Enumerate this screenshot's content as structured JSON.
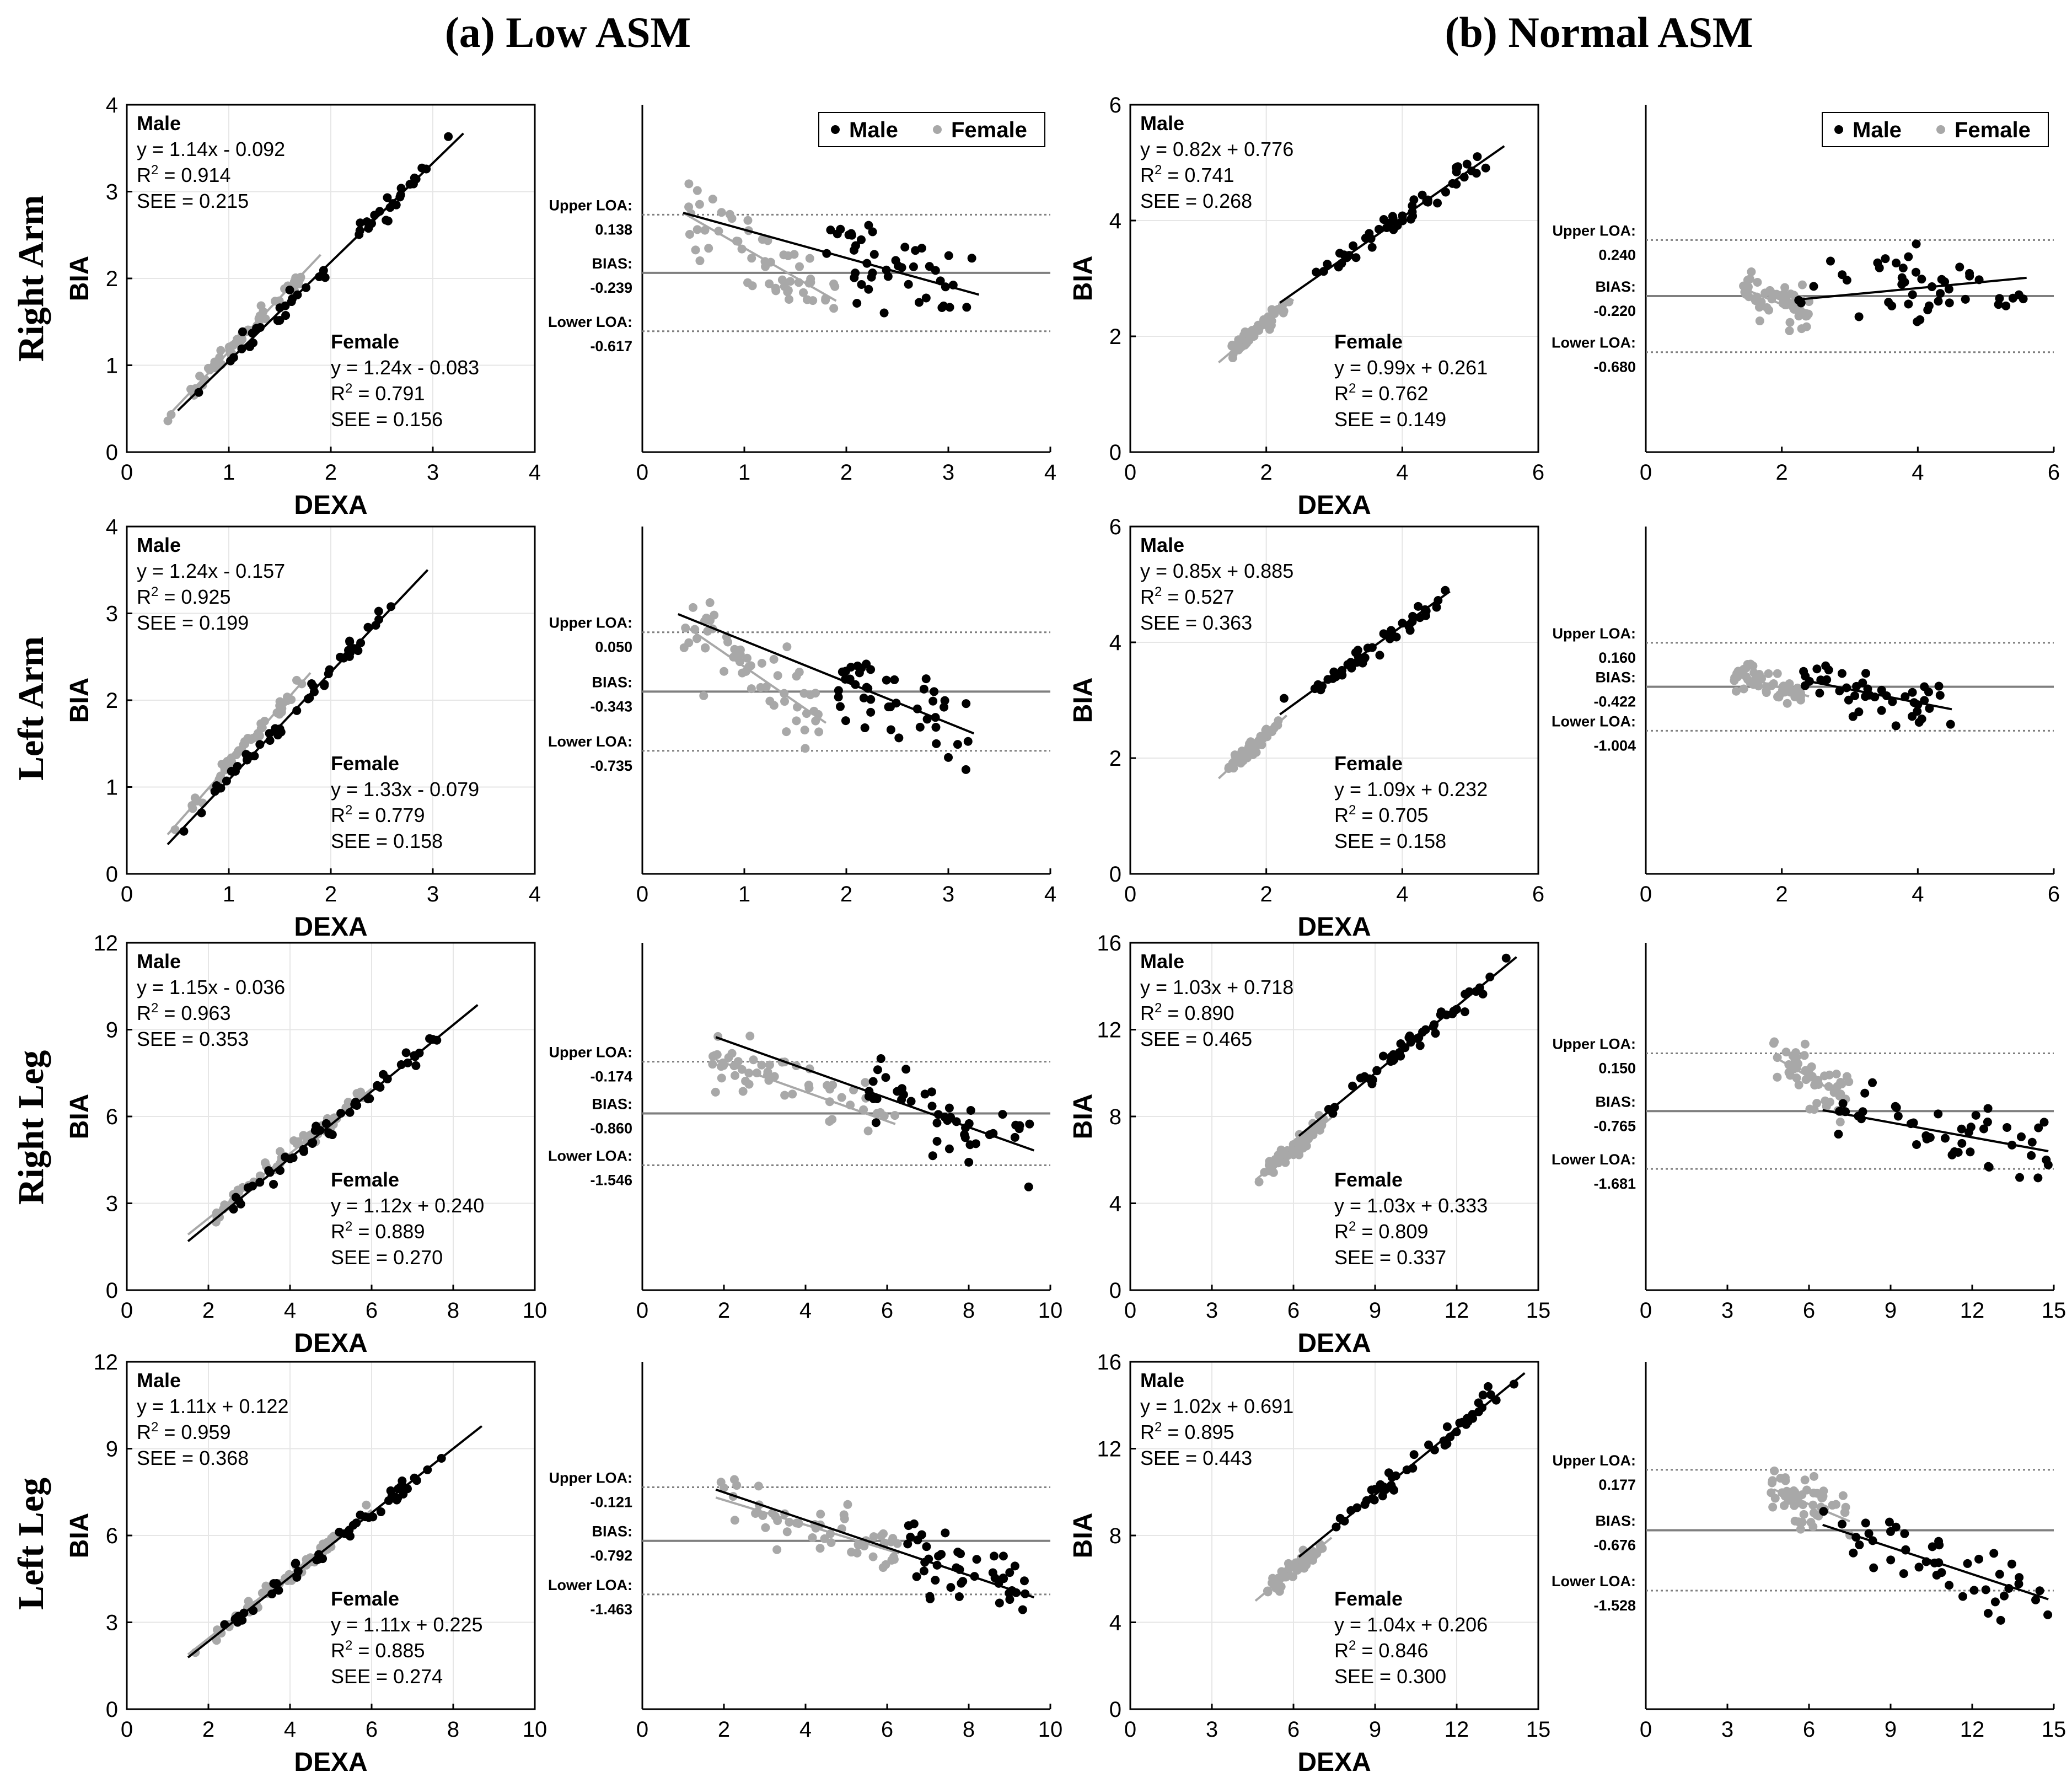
{
  "figure": {
    "group_titles": [
      "(a) Low ASM",
      "(b) Normal ASM"
    ],
    "row_labels": [
      "Right Arm",
      "Left Arm",
      "Right Leg",
      "Left Leg"
    ],
    "axis_label_x": "DEXA",
    "axis_label_y": "BIA",
    "legend": {
      "male": "Male",
      "female": "Female"
    },
    "colors": {
      "male": "#000000",
      "female": "#a8a8a8",
      "bias_line": "#7f7f7f",
      "loa_line": "#7f7f7f",
      "grid": "#e6e6e6"
    }
  },
  "chart_data": [
    {
      "id": "reg-low-rightarm",
      "type": "scatter",
      "group": "(a) Low ASM",
      "row": "Right Arm",
      "kind": "regression",
      "xlim": [
        0,
        4
      ],
      "ylim": [
        0,
        4
      ],
      "xticks": [
        0,
        1,
        2,
        3,
        4
      ],
      "yticks": [
        0,
        1,
        2,
        3,
        4
      ],
      "xlabel": "DEXA",
      "ylabel": "BIA",
      "male": {
        "name": "Male",
        "eq": "y = 1.14x - 0.092",
        "r2": "0.914",
        "see": "SEE = 0.215",
        "slope": 1.14,
        "intercept": -0.092,
        "xrange": [
          0.5,
          3.3
        ]
      },
      "female": {
        "name": "Female",
        "eq": "y = 1.24x - 0.083",
        "r2": "0.791",
        "see": "SEE = 0.156",
        "slope": 1.24,
        "intercept": -0.083,
        "xrange": [
          0.4,
          1.9
        ]
      }
    },
    {
      "id": "ba-low-rightarm",
      "type": "scatter",
      "group": "(a) Low ASM",
      "row": "Right Arm",
      "kind": "bland-altman",
      "xlim": [
        0,
        4
      ],
      "xticks": [
        0,
        1,
        2,
        3,
        4
      ],
      "ylim": [
        -1.4,
        0.85
      ],
      "upper_loa": {
        "label": "Upper LOA:",
        "value": 0.138,
        "text": "0.138"
      },
      "bias": {
        "label": "BIAS:",
        "value": -0.239,
        "text": "-0.239"
      },
      "lower_loa": {
        "label": "Lower LOA:",
        "value": -0.617,
        "text": "-0.617"
      },
      "male_range": [
        1.7,
        3.3
      ],
      "female_range": [
        0.4,
        1.9
      ],
      "male_spread": 0.55,
      "female_spread": 0.4,
      "male_trend": [
        [
          0.4,
          0.15
        ],
        [
          3.3,
          -0.38
        ]
      ],
      "female_trend": [
        [
          0.4,
          0.15
        ],
        [
          1.9,
          -0.42
        ]
      ],
      "legend": true
    },
    {
      "id": "reg-normal-rightarm",
      "type": "scatter",
      "group": "(b) Normal ASM",
      "row": "Right Arm",
      "kind": "regression",
      "xlim": [
        0,
        6
      ],
      "ylim": [
        0,
        6
      ],
      "xticks": [
        0,
        2,
        4,
        6
      ],
      "yticks": [
        0,
        2,
        4,
        6
      ],
      "xlabel": "DEXA",
      "ylabel": "BIA",
      "male": {
        "name": "Male",
        "eq": "y = 0.82x + 0.776",
        "r2": "0.741",
        "see": "SEE = 0.268",
        "slope": 0.82,
        "intercept": 0.776,
        "xrange": [
          2.2,
          5.5
        ]
      },
      "female": {
        "name": "Female",
        "eq": "y = 0.99x + 0.261",
        "r2": "0.762",
        "see": "SEE = 0.149",
        "slope": 0.99,
        "intercept": 0.261,
        "xrange": [
          1.3,
          2.4
        ]
      }
    },
    {
      "id": "ba-normal-rightarm",
      "type": "scatter",
      "group": "(b) Normal ASM",
      "row": "Right Arm",
      "kind": "bland-altman",
      "xlim": [
        0,
        6
      ],
      "xticks": [
        0,
        2,
        4,
        6
      ],
      "ylim": [
        -1.5,
        1.35
      ],
      "upper_loa": {
        "label": "Upper LOA:",
        "value": 0.24,
        "text": "0.240"
      },
      "bias": {
        "label": "BIAS:",
        "value": -0.22,
        "text": "-0.220"
      },
      "lower_loa": {
        "label": "Lower LOA:",
        "value": -0.68,
        "text": "-0.680"
      },
      "male_range": [
        2.2,
        5.6
      ],
      "female_range": [
        1.4,
        2.4
      ],
      "male_spread": 0.5,
      "female_spread": 0.3,
      "male_trend": [
        [
          2.2,
          -0.25
        ],
        [
          5.6,
          -0.07
        ]
      ],
      "female_trend": [
        [
          1.4,
          -0.15
        ],
        [
          2.4,
          -0.38
        ]
      ],
      "legend": true
    },
    {
      "id": "reg-low-leftarm",
      "type": "scatter",
      "group": "(a) Low ASM",
      "row": "Left Arm",
      "kind": "regression",
      "xlim": [
        0,
        4
      ],
      "ylim": [
        0,
        4
      ],
      "xticks": [
        0,
        1,
        2,
        3,
        4
      ],
      "yticks": [
        0,
        1,
        2,
        3,
        4
      ],
      "xlabel": "DEXA",
      "ylabel": "BIA",
      "male": {
        "name": "Male",
        "eq": "y = 1.24x - 0.157",
        "r2": "0.925",
        "see": "SEE = 0.199",
        "slope": 1.24,
        "intercept": -0.157,
        "xrange": [
          0.4,
          2.95
        ]
      },
      "female": {
        "name": "Female",
        "eq": "y = 1.33x - 0.079",
        "r2": "0.779",
        "see": "SEE = 0.158",
        "slope": 1.33,
        "intercept": -0.079,
        "xrange": [
          0.4,
          1.8
        ]
      }
    },
    {
      "id": "ba-low-leftarm",
      "type": "scatter",
      "group": "(a) Low ASM",
      "row": "Left Arm",
      "kind": "bland-altman",
      "xlim": [
        0,
        4
      ],
      "xticks": [
        0,
        1,
        2,
        3,
        4
      ],
      "ylim": [
        -1.55,
        0.75
      ],
      "upper_loa": {
        "label": "Upper LOA:",
        "value": 0.05,
        "text": "0.050"
      },
      "bias": {
        "label": "BIAS:",
        "value": -0.343,
        "text": "-0.343"
      },
      "lower_loa": {
        "label": "Lower LOA:",
        "value": -0.735,
        "text": "-0.735"
      },
      "male_range": [
        1.8,
        3.2
      ],
      "female_range": [
        0.4,
        1.8
      ],
      "male_spread": 0.5,
      "female_spread": 0.45,
      "male_trend": [
        [
          0.35,
          0.17
        ],
        [
          3.25,
          -0.62
        ]
      ],
      "female_trend": [
        [
          0.4,
          0.1
        ],
        [
          1.8,
          -0.55
        ]
      ],
      "legend": false
    },
    {
      "id": "reg-normal-leftarm",
      "type": "scatter",
      "group": "(b) Normal ASM",
      "row": "Left Arm",
      "kind": "regression",
      "xlim": [
        0,
        6
      ],
      "ylim": [
        0,
        6
      ],
      "xticks": [
        0,
        2,
        4,
        6
      ],
      "yticks": [
        0,
        2,
        4,
        6
      ],
      "xlabel": "DEXA",
      "ylabel": "BIA",
      "male": {
        "name": "Male",
        "eq": "y = 0.85x + 0.885",
        "r2": "0.527",
        "see": "SEE = 0.363",
        "slope": 0.85,
        "intercept": 0.885,
        "xrange": [
          2.2,
          4.7
        ]
      },
      "female": {
        "name": "Female",
        "eq": "y = 1.09x + 0.232",
        "r2": "0.705",
        "see": "SEE = 0.158",
        "slope": 1.09,
        "intercept": 0.232,
        "xrange": [
          1.3,
          2.3
        ]
      }
    },
    {
      "id": "ba-normal-leftarm",
      "type": "scatter",
      "group": "(b) Normal ASM",
      "row": "Left Arm",
      "kind": "bland-altman",
      "xlim": [
        0,
        6
      ],
      "xticks": [
        0,
        2,
        4,
        6
      ],
      "ylim": [
        -2.9,
        1.7
      ],
      "upper_loa": {
        "label": "Upper LOA:",
        "value": 0.16,
        "text": "0.160"
      },
      "bias": {
        "label": "BIAS:",
        "value": -0.422,
        "text": "-0.422"
      },
      "lower_loa": {
        "label": "Lower LOA:",
        "value": -1.004,
        "text": "-1.004"
      },
      "male_range": [
        2.3,
        4.5
      ],
      "female_range": [
        1.3,
        2.3
      ],
      "male_spread": 0.55,
      "female_spread": 0.3,
      "male_trend": [
        [
          2.4,
          -0.35
        ],
        [
          4.5,
          -0.72
        ]
      ],
      "female_trend": [
        [
          1.3,
          -0.25
        ],
        [
          2.4,
          -0.55
        ]
      ],
      "legend": false
    },
    {
      "id": "reg-low-rightleg",
      "type": "scatter",
      "group": "(a) Low ASM",
      "row": "Right Leg",
      "kind": "regression",
      "xlim": [
        0,
        10
      ],
      "ylim": [
        0,
        12
      ],
      "xticks": [
        0,
        2,
        4,
        6,
        8,
        10
      ],
      "yticks": [
        0,
        3,
        6,
        9,
        12
      ],
      "xlabel": "DEXA",
      "ylabel": "BIA",
      "male": {
        "name": "Male",
        "eq": "y = 1.15x - 0.036",
        "r2": "0.963",
        "see": "SEE = 0.353",
        "slope": 1.15,
        "intercept": -0.036,
        "xrange": [
          1.5,
          8.6
        ]
      },
      "female": {
        "name": "Female",
        "eq": "y = 1.12x + 0.240",
        "r2": "0.889",
        "see": "SEE = 0.270",
        "slope": 1.12,
        "intercept": 0.24,
        "xrange": [
          1.5,
          6.0
        ]
      }
    },
    {
      "id": "ba-low-rightleg",
      "type": "scatter",
      "group": "(a) Low ASM",
      "row": "Right Leg",
      "kind": "bland-altman",
      "xlim": [
        0,
        10
      ],
      "xticks": [
        0,
        2,
        4,
        6,
        8,
        10
      ],
      "ylim": [
        -3.2,
        1.4
      ],
      "upper_loa": {
        "label": "Upper LOA:",
        "value": -0.174,
        "text": "-0.174"
      },
      "bias": {
        "label": "BIAS:",
        "value": -0.86,
        "text": "-0.860"
      },
      "lower_loa": {
        "label": "Lower LOA:",
        "value": -1.546,
        "text": "-1.546"
      },
      "male_range": [
        5.5,
        9.6
      ],
      "female_range": [
        1.7,
        6.2
      ],
      "male_spread": 0.8,
      "female_spread": 0.6,
      "male_trend": [
        [
          1.8,
          0.15
        ],
        [
          9.6,
          -1.35
        ]
      ],
      "female_trend": [
        [
          1.8,
          -0.15
        ],
        [
          6.2,
          -1.0
        ]
      ],
      "legend": false
    },
    {
      "id": "reg-normal-rightleg",
      "type": "scatter",
      "group": "(b) Normal ASM",
      "row": "Right Leg",
      "kind": "regression",
      "xlim": [
        0,
        15
      ],
      "ylim": [
        0,
        16
      ],
      "xticks": [
        0,
        3,
        6,
        9,
        12,
        15
      ],
      "yticks": [
        0,
        4,
        8,
        12,
        16
      ],
      "xlabel": "DEXA",
      "ylabel": "BIA",
      "male": {
        "name": "Male",
        "eq": "y = 1.03x + 0.718",
        "r2": "0.890",
        "see": "SEE = 0.465",
        "slope": 1.03,
        "intercept": 0.718,
        "xrange": [
          6.2,
          14.2
        ]
      },
      "female": {
        "name": "Female",
        "eq": "y = 1.03x + 0.333",
        "r2": "0.809",
        "see": "SEE = 0.337",
        "slope": 1.03,
        "intercept": 0.333,
        "xrange": [
          4.6,
          7.4
        ]
      }
    },
    {
      "id": "ba-normal-rightleg",
      "type": "scatter",
      "group": "(b) Normal ASM",
      "row": "Right Leg",
      "kind": "bland-altman",
      "xlim": [
        0,
        15
      ],
      "xticks": [
        0,
        3,
        6,
        9,
        12,
        15
      ],
      "ylim": [
        -3.6,
        1.9
      ],
      "upper_loa": {
        "label": "Upper LOA:",
        "value": 0.15,
        "text": "0.150"
      },
      "bias": {
        "label": "BIAS:",
        "value": -0.765,
        "text": "-0.765"
      },
      "lower_loa": {
        "label": "Lower LOA:",
        "value": -1.681,
        "text": "-1.681"
      },
      "male_range": [
        6.5,
        14.8
      ],
      "female_range": [
        4.6,
        7.5
      ],
      "male_spread": 0.9,
      "female_spread": 0.7,
      "male_trend": [
        [
          6.5,
          -0.75
        ],
        [
          14.8,
          -1.4
        ]
      ],
      "female_trend": [
        [
          4.7,
          0.1
        ],
        [
          7.5,
          -0.6
        ]
      ],
      "legend": false
    },
    {
      "id": "reg-low-leftleg",
      "type": "scatter",
      "group": "(a) Low ASM",
      "row": "Left Leg",
      "kind": "regression",
      "xlim": [
        0,
        10
      ],
      "ylim": [
        0,
        12
      ],
      "xticks": [
        0,
        2,
        4,
        6,
        8,
        10
      ],
      "yticks": [
        0,
        3,
        6,
        9,
        12
      ],
      "xlabel": "DEXA",
      "ylabel": "BIA",
      "male": {
        "name": "Male",
        "eq": "y = 1.11x + 0.122",
        "r2": "0.959",
        "see": "SEE = 0.368",
        "slope": 1.11,
        "intercept": 0.122,
        "xrange": [
          1.5,
          8.7
        ]
      },
      "female": {
        "name": "Female",
        "eq": "y = 1.11x + 0.225",
        "r2": "0.885",
        "see": "SEE = 0.274",
        "slope": 1.11,
        "intercept": 0.225,
        "xrange": [
          1.5,
          6.0
        ]
      }
    },
    {
      "id": "ba-low-leftleg",
      "type": "scatter",
      "group": "(a) Low ASM",
      "row": "Left Leg",
      "kind": "bland-altman",
      "xlim": [
        0,
        10
      ],
      "xticks": [
        0,
        2,
        4,
        6,
        8,
        10
      ],
      "ylim": [
        -2.9,
        1.45
      ],
      "upper_loa": {
        "label": "Upper LOA:",
        "value": -0.121,
        "text": "-0.121"
      },
      "bias": {
        "label": "BIAS:",
        "value": -0.792,
        "text": "-0.792"
      },
      "lower_loa": {
        "label": "Lower LOA:",
        "value": -1.463,
        "text": "-1.463"
      },
      "male_range": [
        6.5,
        9.6
      ],
      "female_range": [
        1.7,
        6.3
      ],
      "male_spread": 0.75,
      "female_spread": 0.55,
      "male_trend": [
        [
          1.8,
          -0.15
        ],
        [
          9.6,
          -1.5
        ]
      ],
      "female_trend": [
        [
          1.8,
          -0.25
        ],
        [
          6.3,
          -0.95
        ]
      ],
      "legend": false
    },
    {
      "id": "reg-normal-leftleg",
      "type": "scatter",
      "group": "(b) Normal ASM",
      "row": "Left Leg",
      "kind": "regression",
      "xlim": [
        0,
        15
      ],
      "ylim": [
        0,
        16
      ],
      "xticks": [
        0,
        3,
        6,
        9,
        12,
        15
      ],
      "yticks": [
        0,
        4,
        8,
        12,
        16
      ],
      "xlabel": "DEXA",
      "ylabel": "BIA",
      "male": {
        "name": "Male",
        "eq": "y = 1.02x + 0.691",
        "r2": "0.895",
        "see": "SEE = 0.443",
        "slope": 1.02,
        "intercept": 0.691,
        "xrange": [
          6.2,
          14.5
        ]
      },
      "female": {
        "name": "Female",
        "eq": "y = 1.04x + 0.206",
        "r2": "0.846",
        "see": "SEE = 0.300",
        "slope": 1.04,
        "intercept": 0.206,
        "xrange": [
          4.6,
          7.4
        ]
      }
    },
    {
      "id": "ba-normal-leftleg",
      "type": "scatter",
      "group": "(b) Normal ASM",
      "row": "Left Leg",
      "kind": "bland-altman",
      "xlim": [
        0,
        15
      ],
      "xticks": [
        0,
        3,
        6,
        9,
        12,
        15
      ],
      "ylim": [
        -3.2,
        1.7
      ],
      "upper_loa": {
        "label": "Upper LOA:",
        "value": 0.177,
        "text": "0.177"
      },
      "bias": {
        "label": "BIAS:",
        "value": -0.676,
        "text": "-0.676"
      },
      "lower_loa": {
        "label": "Lower LOA:",
        "value": -1.528,
        "text": "-1.528"
      },
      "male_range": [
        6.5,
        14.8
      ],
      "female_range": [
        4.6,
        7.5
      ],
      "male_spread": 0.85,
      "female_spread": 0.6,
      "male_trend": [
        [
          6.5,
          -0.6
        ],
        [
          14.8,
          -1.65
        ]
      ],
      "female_trend": [
        [
          4.7,
          -0.1
        ],
        [
          7.5,
          -0.55
        ]
      ],
      "legend": false
    }
  ]
}
